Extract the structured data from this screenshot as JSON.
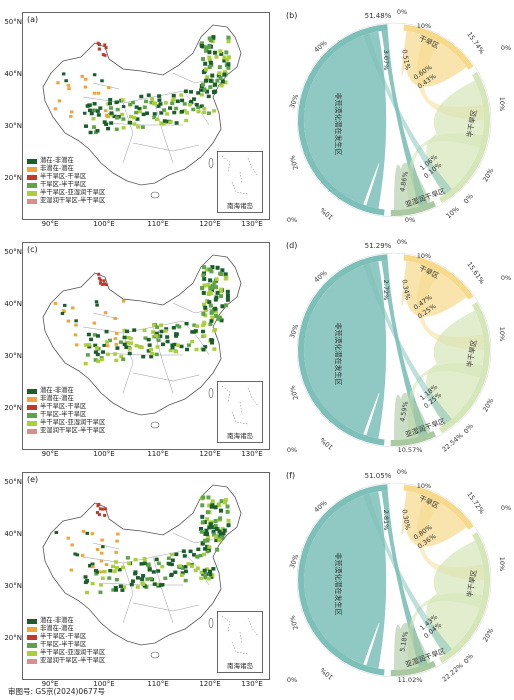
{
  "footer": "审图号: GS京(2024)0677号",
  "lat_ticks": [
    "50°N",
    "40°N",
    "30°N",
    "20°N"
  ],
  "lon_ticks": [
    "90°E",
    "100°E",
    "110°E",
    "120°E",
    "130°E"
  ],
  "inset_label": "南海诸岛",
  "legend_colors": [
    "#1a5e2c",
    "#f0a43c",
    "#c0392b",
    "#5fa24a",
    "#a9cf3c",
    "#d9908c"
  ],
  "panels": [
    {
      "map_label": "(a)",
      "chord_label": "(b)",
      "legend": [
        "潜在-非潜在",
        "非潜在-潜在",
        "半干旱区-干旱区",
        "干旱区-半干旱区",
        "半干旱区-亚湿润干旱区",
        "亚湿润干旱区-半干旱区"
      ],
      "chord": {
        "top_left": "51.48%",
        "top_zero": "0%",
        "top_right": "0%",
        "left_pcts": [
          "40%",
          "30%",
          "20%",
          "10%"
        ],
        "left_zero": "0%",
        "band_label": "非荒漠化潜在发生区",
        "inner_left": "3.07%",
        "arid_label": "干旱区",
        "arid_pcts": [
          "10%"
        ],
        "arid_right": "15.74%",
        "arid_inner": [
          "0.51%",
          "0.60%",
          "0.43%"
        ],
        "semi_label": "半干旱区",
        "semi_pcts": [
          "10%",
          "20%"
        ],
        "semi_inner": [
          "1.06%",
          "0.10%"
        ],
        "semi_zero": "0%",
        "sub_label": "亚湿润干旱区",
        "sub_inner": "4.86%",
        "sub_bottom": "0%",
        "sub_right": "10%"
      }
    },
    {
      "map_label": "(c)",
      "chord_label": "(d)",
      "legend": [
        "潜在-非潜在",
        "非潜在-潜在",
        "半干旱区-干旱区",
        "干旱区-半干旱区",
        "半干旱区-亚湿润干旱区",
        "亚湿润干旱区-半干旱区"
      ],
      "chord": {
        "top_left": "51.29%",
        "top_zero": "0%",
        "top_right": "0%",
        "left_pcts": [
          "40%",
          "30%",
          "20%",
          "10%"
        ],
        "left_zero": "0%",
        "band_label": "非荒漠化潜在发生区",
        "inner_left": "2.72%",
        "arid_label": "干旱区",
        "arid_pcts": [
          "10%"
        ],
        "arid_right": "15.61%",
        "arid_inner": [
          "0.34%",
          "0.47%",
          "0.25%"
        ],
        "semi_label": "半干旱区",
        "semi_pcts": [
          "10%",
          "20%"
        ],
        "semi_inner": [
          "1.18%",
          "0.25%"
        ],
        "semi_zero": "0%",
        "sub_label": "亚湿润干旱区",
        "sub_inner": "4.59%",
        "sub_bottom": "10.57%",
        "sub_right": "22.54%"
      }
    },
    {
      "map_label": "(e)",
      "chord_label": "(f)",
      "legend": [
        "潜在-非潜在",
        "非潜在-潜在",
        "半干旱区-干旱区",
        "干旱区-半干旱区",
        "半干旱区-亚湿润干旱区",
        "亚湿润干旱区-半干旱区"
      ],
      "chord": {
        "top_left": "51.05%",
        "top_zero": "0%",
        "top_right": "0%",
        "left_pcts": [
          "40%",
          "30%",
          "20%",
          "10%"
        ],
        "left_zero": "0%",
        "band_label": "非荒漠化潜在发生区",
        "inner_left": "2.81%",
        "arid_label": "干旱区",
        "arid_pcts": [
          "10%"
        ],
        "arid_right": "15.72%",
        "arid_inner": [
          "0.30%",
          "0.80%",
          "0.36%"
        ],
        "semi_label": "半干旱区",
        "semi_pcts": [
          "10%",
          "20%"
        ],
        "semi_inner": [
          "1.43%",
          "0.04%"
        ],
        "semi_zero": "0%",
        "sub_label": "亚湿润干旱区",
        "sub_inner": "5.18%",
        "sub_bottom": "11.02%",
        "sub_right": "22.22%"
      }
    }
  ]
}
